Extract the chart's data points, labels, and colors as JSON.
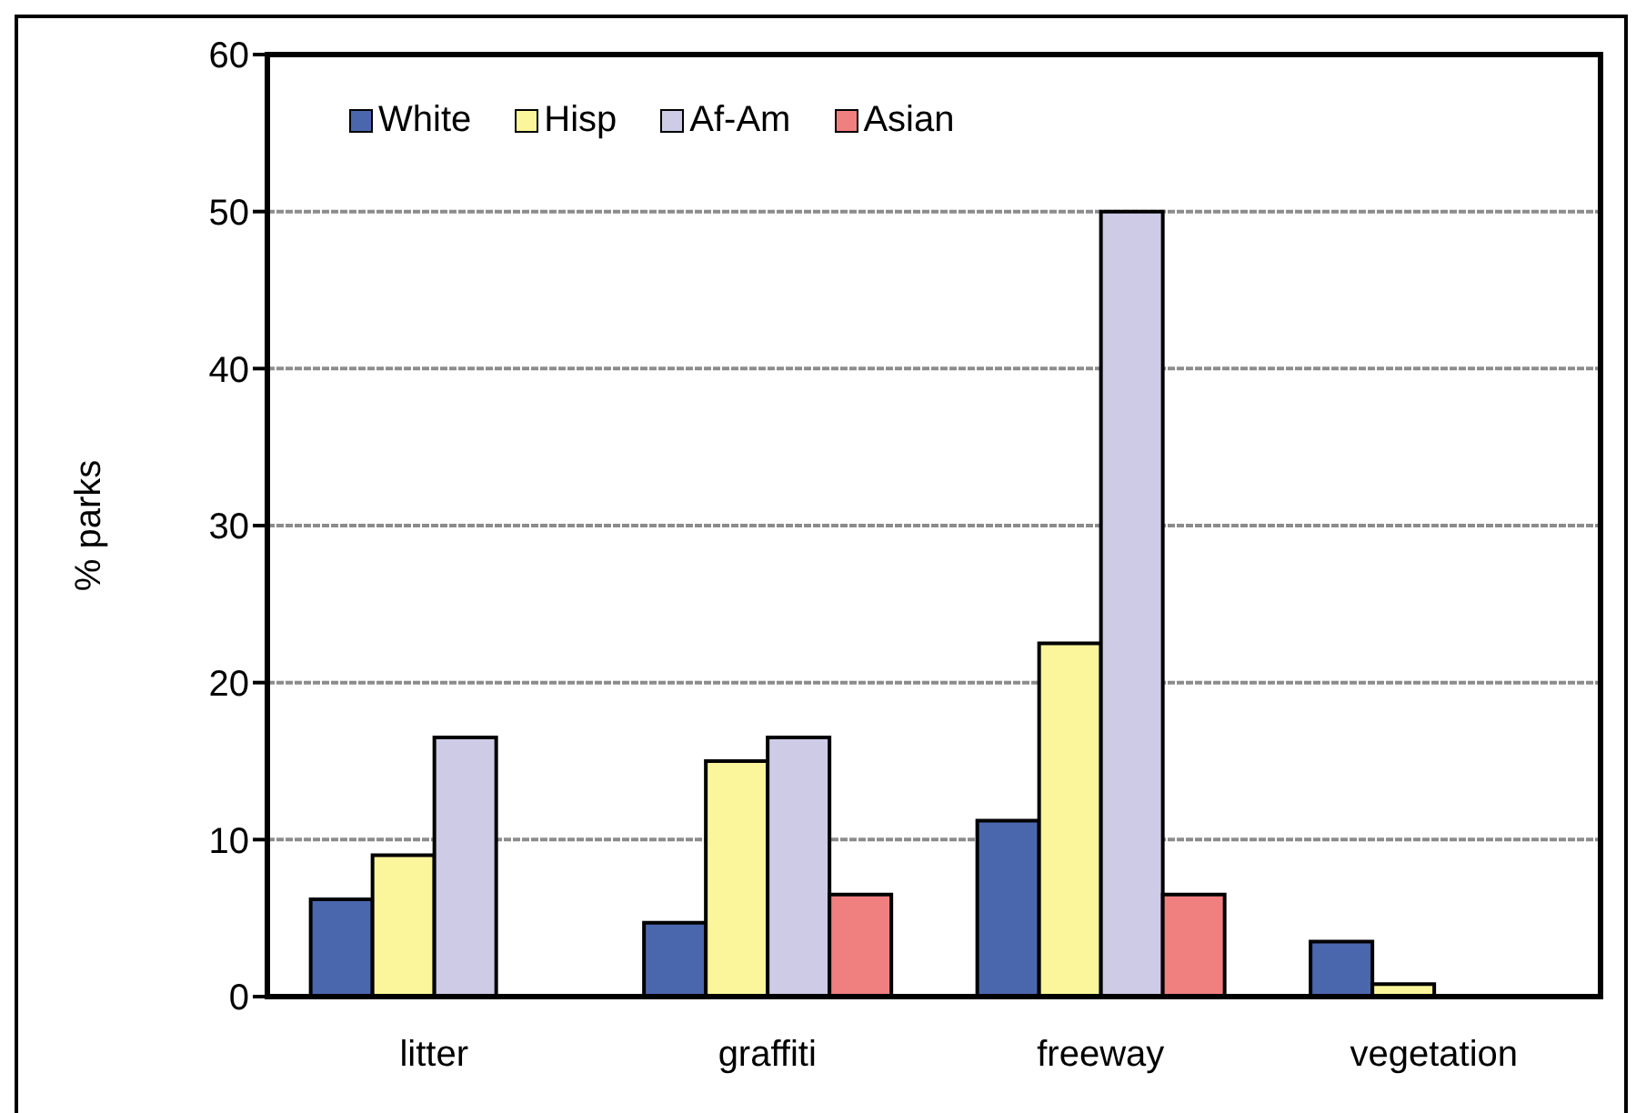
{
  "chart_data": {
    "type": "bar",
    "ylabel": "% parks",
    "categories": [
      "litter",
      "graffiti",
      "freeway",
      "vegetation"
    ],
    "series": [
      {
        "name": "White",
        "color": "#4a67ae",
        "values": [
          6.2,
          4.7,
          11.2,
          3.5
        ]
      },
      {
        "name": "Hisp",
        "color": "#fbf59c",
        "values": [
          9,
          15,
          22.5,
          0.8
        ]
      },
      {
        "name": "Af-Am",
        "color": "#cdcbe6",
        "values": [
          16.5,
          16.5,
          50,
          0
        ]
      },
      {
        "name": "Asian",
        "color": "#f08080",
        "values": [
          0,
          6.5,
          6.5,
          0
        ]
      }
    ],
    "ylim": [
      0,
      60
    ],
    "yticks": [
      0,
      10,
      20,
      30,
      40,
      50,
      60
    ],
    "grid": "y",
    "legend": "top left"
  }
}
